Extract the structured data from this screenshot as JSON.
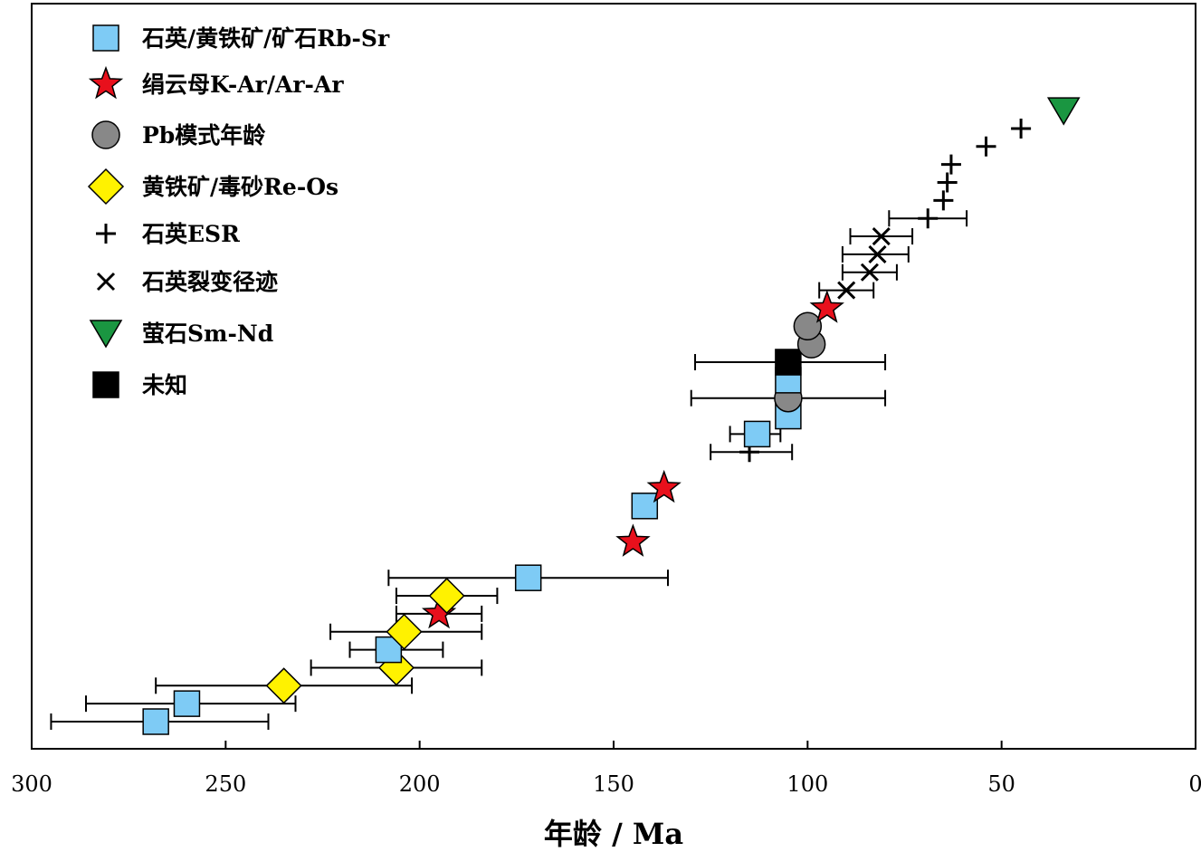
{
  "chart_data": {
    "type": "scatter",
    "xlabel": "年龄 / Ma",
    "ylabel": "",
    "title": "",
    "xlim": [
      300,
      0
    ],
    "x_reversed": true,
    "xticks": [
      300,
      250,
      200,
      150,
      100,
      50,
      0
    ],
    "grid": false,
    "legend_position": "top-left",
    "series": [
      {
        "name": "石英/黄铁矿/矿石Rb-Sr",
        "marker": "square",
        "color": "#7ecbf5",
        "points": [
          {
            "x": 268,
            "rank": 1,
            "xerr": [
              295,
              239
            ]
          },
          {
            "x": 260,
            "rank": 2,
            "xerr": [
              286,
              232
            ]
          },
          {
            "x": 208,
            "rank": 5,
            "xerr": [
              218,
              194
            ]
          },
          {
            "x": 172,
            "rank": 9,
            "xerr": [
              208,
              136
            ]
          },
          {
            "x": 142,
            "rank": 13
          },
          {
            "x": 113,
            "rank": 17,
            "xerr": [
              120,
              107
            ]
          },
          {
            "x": 105,
            "rank": 18
          },
          {
            "x": 105,
            "rank": 20
          }
        ]
      },
      {
        "name": "绢云母K-Ar/Ar-Ar",
        "marker": "star",
        "color": "#e8101c",
        "points": [
          {
            "x": 195,
            "rank": 7,
            "xerr": [
              206,
              184
            ]
          },
          {
            "x": 145,
            "rank": 11
          },
          {
            "x": 137,
            "rank": 14
          },
          {
            "x": 95,
            "rank": 24
          }
        ]
      },
      {
        "name": "Pb模式年龄",
        "marker": "circle",
        "color": "#888888",
        "points": [
          {
            "x": 105,
            "rank": 19,
            "xerr": [
              130,
              80
            ]
          },
          {
            "x": 99,
            "rank": 22
          },
          {
            "x": 100,
            "rank": 23
          }
        ]
      },
      {
        "name": "黄铁矿/毒砂Re-Os",
        "marker": "diamond",
        "color": "#fff200",
        "points": [
          {
            "x": 235,
            "rank": 3,
            "xerr": [
              268,
              202
            ]
          },
          {
            "x": 206,
            "rank": 4,
            "xerr": [
              228,
              184
            ]
          },
          {
            "x": 204,
            "rank": 6,
            "xerr": [
              223,
              184
            ]
          },
          {
            "x": 193,
            "rank": 8,
            "xerr": [
              206,
              180
            ]
          }
        ]
      },
      {
        "name": "石英ESR",
        "marker": "plus",
        "color": "#000000",
        "points": [
          {
            "x": 115,
            "rank": 16,
            "xerr": [
              125,
              104
            ]
          },
          {
            "x": 69,
            "rank": 29,
            "xerr": [
              79,
              59
            ]
          },
          {
            "x": 65,
            "rank": 30
          },
          {
            "x": 64,
            "rank": 31
          },
          {
            "x": 63,
            "rank": 32
          },
          {
            "x": 54,
            "rank": 33
          },
          {
            "x": 45,
            "rank": 34
          }
        ]
      },
      {
        "name": "石英裂变径迹",
        "marker": "cross",
        "color": "#000000",
        "points": [
          {
            "x": 90,
            "rank": 25,
            "xerr": [
              97,
              83
            ]
          },
          {
            "x": 84,
            "rank": 26,
            "xerr": [
              91,
              77
            ]
          },
          {
            "x": 82,
            "rank": 27,
            "xerr": [
              91,
              74
            ]
          },
          {
            "x": 81,
            "rank": 28,
            "xerr": [
              89,
              73
            ]
          }
        ]
      },
      {
        "name": "萤石Sm-Nd",
        "marker": "triangle-down",
        "color": "#1a9641",
        "points": [
          {
            "x": 34,
            "rank": 35
          }
        ]
      },
      {
        "name": "未知",
        "marker": "square",
        "color": "#000000",
        "points": [
          {
            "x": 105,
            "rank": 21,
            "xerr": [
              129,
              80
            ]
          }
        ]
      }
    ]
  }
}
